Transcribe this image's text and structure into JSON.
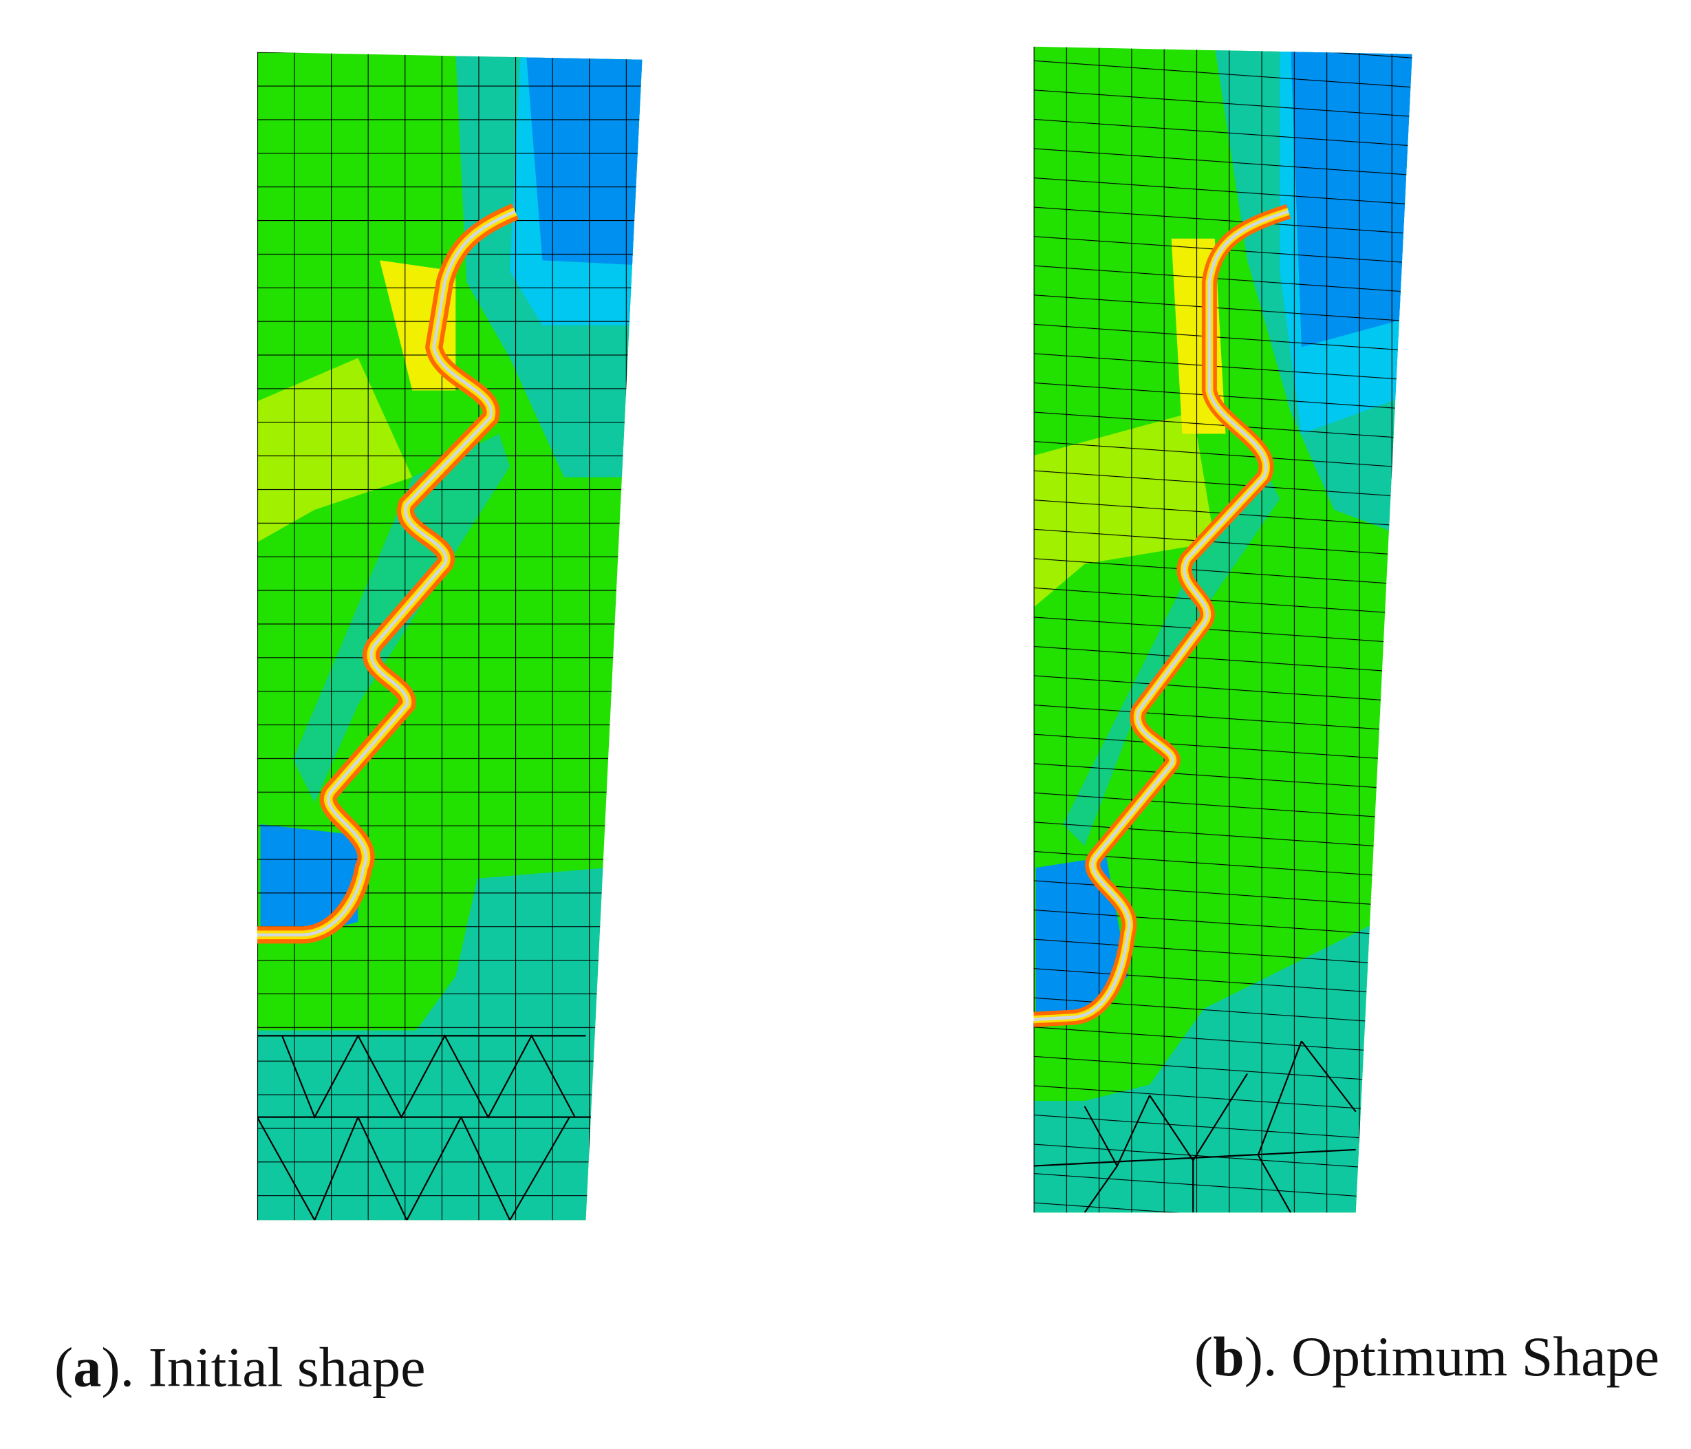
{
  "panels": [
    {
      "open": "(",
      "label": "a",
      "text": "). Initial shape"
    },
    {
      "open": "(",
      "label": "b",
      "text": "). Optimum Shape"
    }
  ]
}
